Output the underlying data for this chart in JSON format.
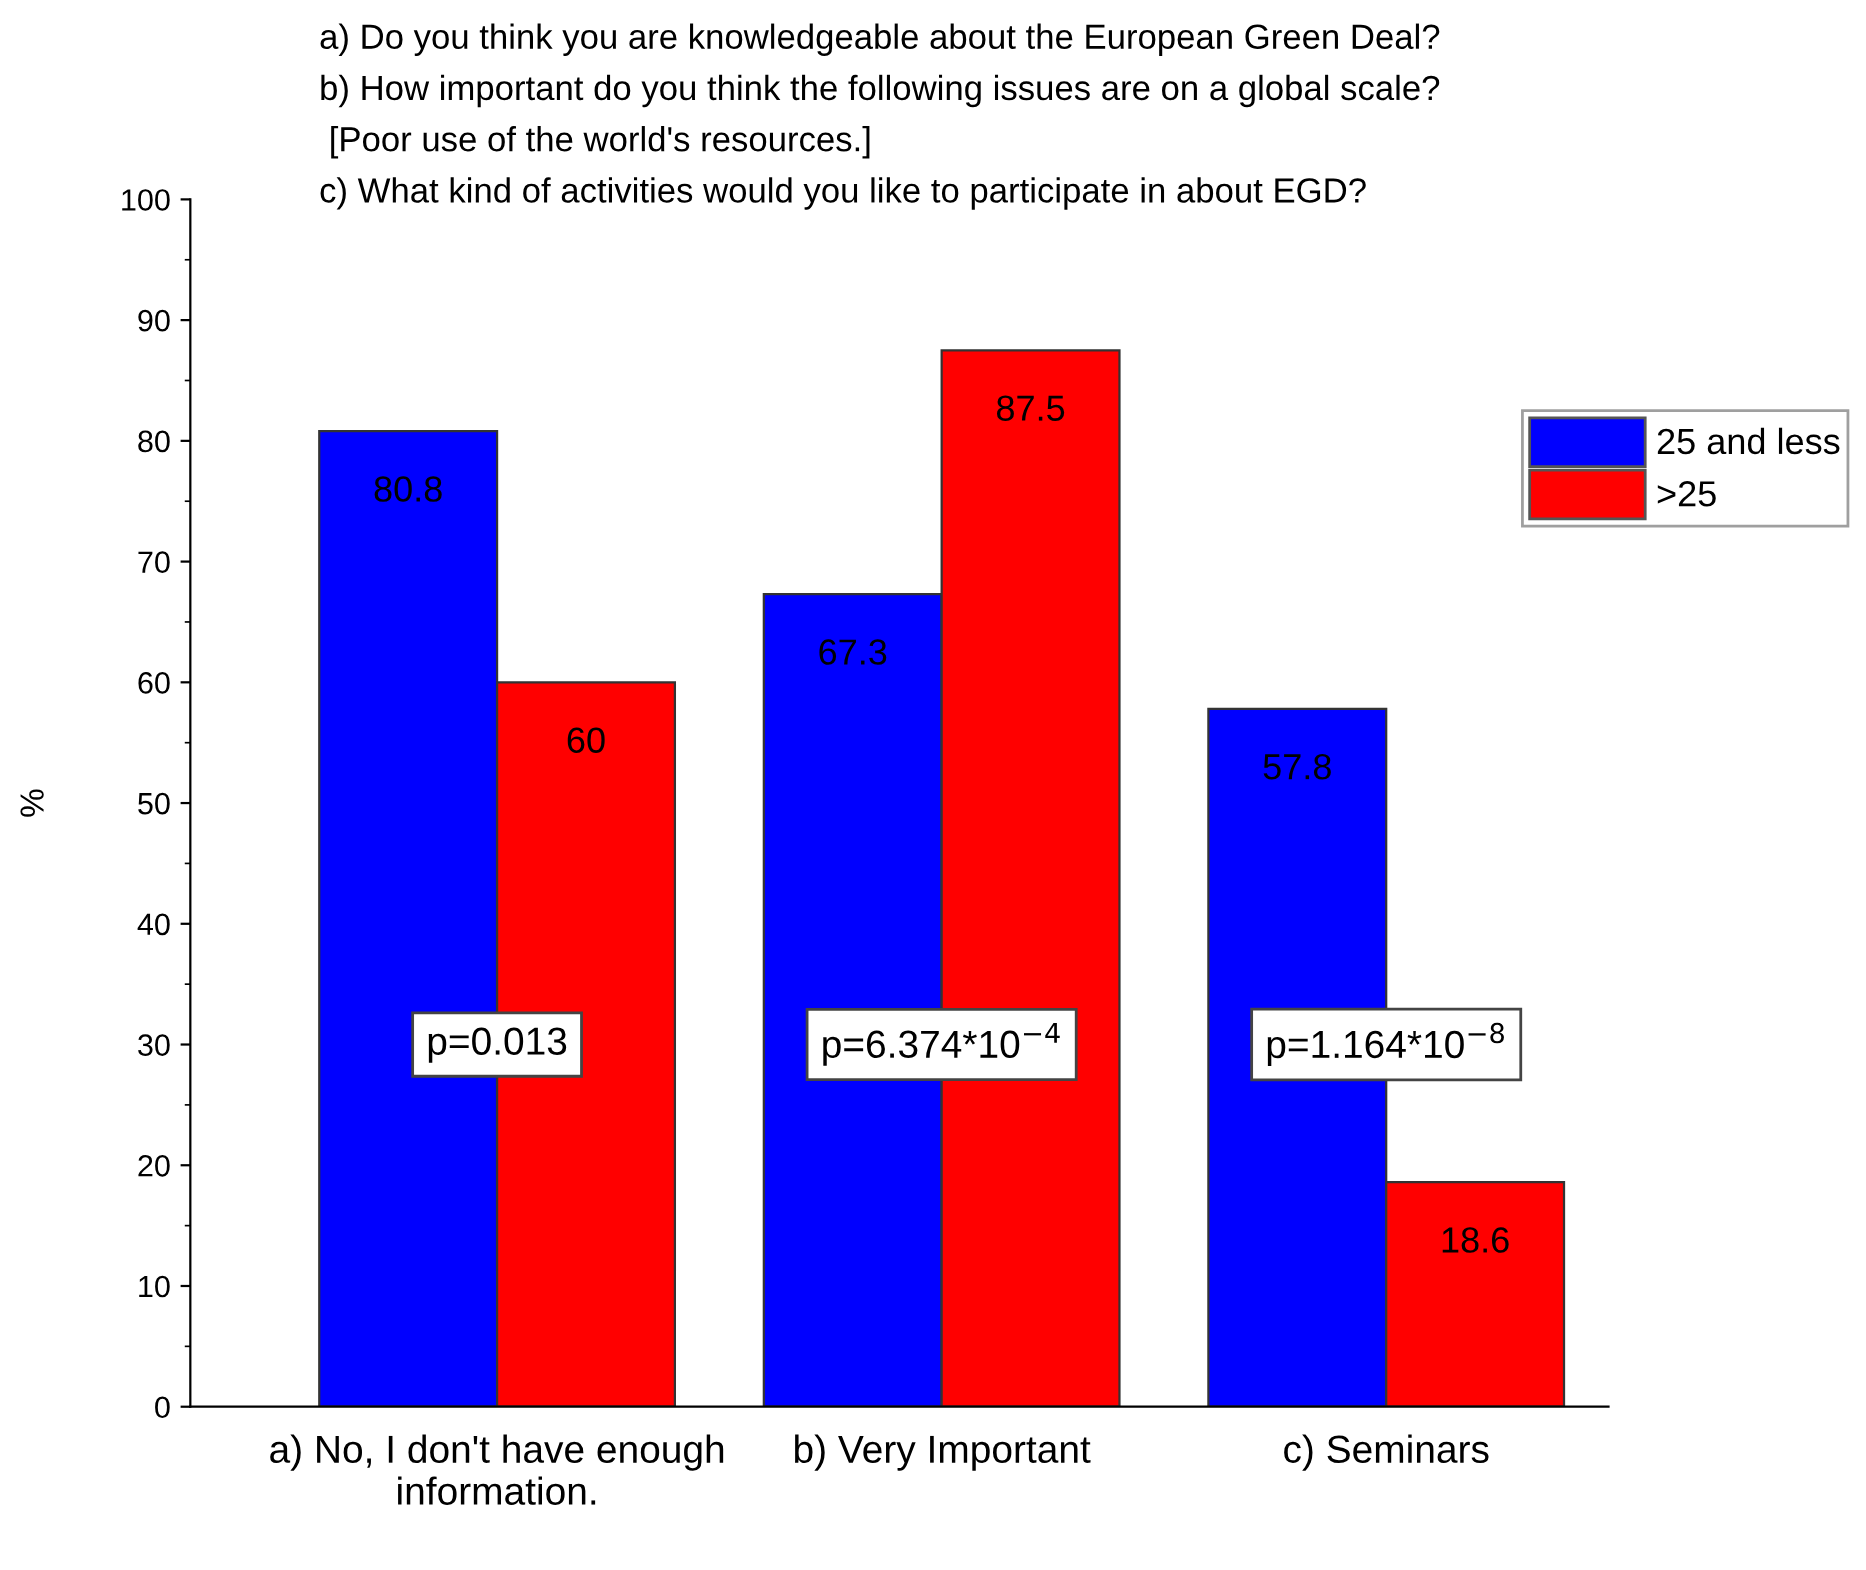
{
  "chart_data": {
    "type": "bar",
    "title": "a) Do you think you are knowledgeable about the European Green Deal?\nb) How important do you think the following issues are on a global scale?\n [Poor use of the world's resources.]\nc) What kind of activities would you like to participate in about EGD?",
    "ylabel": "%",
    "categories": [
      "a) No, I don't have enough\ninformation.",
      "b) Very Important",
      "c) Seminars"
    ],
    "series": [
      {
        "name": "25 and less",
        "color": "#0000ff",
        "values": [
          80.8,
          67.3,
          57.8
        ]
      },
      {
        "name": ">25",
        "color": "#ff0000",
        "values": [
          60,
          87.5,
          18.6
        ]
      }
    ],
    "ylim": [
      0,
      100
    ],
    "yticks": [
      0,
      10,
      20,
      30,
      40,
      50,
      60,
      70,
      80,
      90,
      100
    ],
    "data_labels": true,
    "legend": "top right",
    "grid": false,
    "annotations": [
      "p=0.013",
      "p=6.374*10$^{−4}$",
      "p=1.164*10$^{−8}$"
    ]
  }
}
